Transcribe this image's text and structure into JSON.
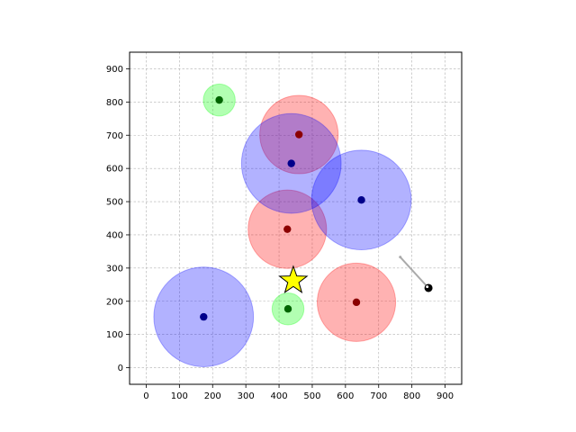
{
  "chart_data": {
    "type": "scatter",
    "title": "",
    "xlabel": "",
    "ylabel": "",
    "xlim": [
      -50,
      950
    ],
    "ylim": [
      -50,
      950
    ],
    "xticks": [
      0,
      100,
      200,
      300,
      400,
      500,
      600,
      700,
      800,
      900
    ],
    "yticks": [
      0,
      100,
      200,
      300,
      400,
      500,
      600,
      700,
      800,
      900
    ],
    "grid": true,
    "colors": {
      "red_fill": "#ff0000",
      "red_center": "#8b0000",
      "blue_fill": "#0000ff",
      "blue_center": "#00008b",
      "green_fill": "#00ff00",
      "green_center": "#006400",
      "star": "#ffff00",
      "arrow": "#aaaaaa"
    },
    "circles": [
      {
        "group": "red",
        "x": 460,
        "y": 702,
        "r": 118
      },
      {
        "group": "red",
        "x": 425,
        "y": 417,
        "r": 118
      },
      {
        "group": "red",
        "x": 633,
        "y": 197,
        "r": 118
      },
      {
        "group": "blue",
        "x": 437,
        "y": 615,
        "r": 150
      },
      {
        "group": "blue",
        "x": 648,
        "y": 505,
        "r": 150
      },
      {
        "group": "blue",
        "x": 173,
        "y": 153,
        "r": 150
      },
      {
        "group": "green",
        "x": 220,
        "y": 806,
        "r": 48
      },
      {
        "group": "green",
        "x": 427,
        "y": 177,
        "r": 48
      }
    ],
    "star": {
      "x": 443,
      "y": 262
    },
    "agent": {
      "x": 850,
      "y": 240,
      "heading_to": {
        "x": 765,
        "y": 333
      }
    }
  }
}
